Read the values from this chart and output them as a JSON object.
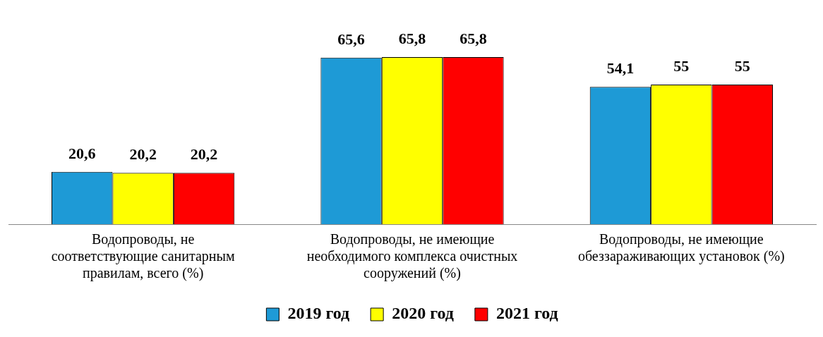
{
  "chart_data": {
    "type": "bar",
    "categories": [
      "Водопроводы, не соответствующие санитарным правилам, всего (%)",
      "Водопроводы, не имеющие необходимого комплекса очистных сооружений (%)",
      "Водопроводы, не имеющие обеззараживающих установок (%)"
    ],
    "series": [
      {
        "name": "2019 год",
        "color": "#1e9ad6",
        "values": [
          20.6,
          65.6,
          54.1
        ],
        "value_labels": [
          "20,6",
          "65,6",
          "54,1"
        ]
      },
      {
        "name": "2020 год",
        "color": "#ffff00",
        "values": [
          20.2,
          65.8,
          55
        ],
        "value_labels": [
          "20,2",
          "65,8",
          "55"
        ]
      },
      {
        "name": "2021 год",
        "color": "#ff0000",
        "values": [
          20.2,
          65.8,
          55
        ],
        "value_labels": [
          "20,2",
          "65,8",
          "55"
        ]
      }
    ],
    "legend": "bottom"
  }
}
